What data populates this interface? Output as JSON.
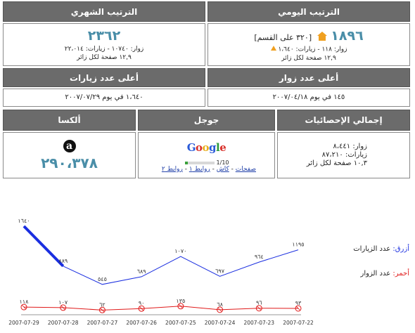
{
  "daily": {
    "header": "الترتيب اليومي",
    "rank": "١٨٩٦",
    "category": "[٣٢٠ على القسم]",
    "stats": "زوار: ١١٨ - زيارات: ١،٦٤٠",
    "pages": "١٢,٩ صفحة لكل زائر"
  },
  "monthly": {
    "header": "الترتيب الشهري",
    "rank": "٢٣٦٢",
    "stats": "زوار: ١٠٧٤٠ - زيارات: ٢٢،٠١٤",
    "pages": "١٢,٩ صفحة لكل زائر"
  },
  "top_visitors": {
    "header": "أعلى عدد زوار",
    "value": "١٤٥ في يوم ٢٠٠٧/٠٤/١٨"
  },
  "top_visits": {
    "header": "أعلى عدد زيارات",
    "value": "١،٦٤٠ في يوم ٢٠٠٧/٠٧/٢٩"
  },
  "totals": {
    "header": "إجمالي الإحصائيات",
    "visitors": "زوار: ٨،٤٤١",
    "visits": "زيارات: ٨٧،٢١٠",
    "pages": "١٠,٣ صفحة لكل زائر"
  },
  "google": {
    "header": "جوجل",
    "pagerank": "1/10",
    "pagerank_fraction": 0.1,
    "links": {
      "pages": "صفحات",
      "cache": "كاش",
      "links1": "روابط ١",
      "links2": "روابط ٢"
    }
  },
  "alexa": {
    "header": "ألكسا",
    "rank": "٢٩٠،٣٧٨"
  },
  "legend": {
    "blue_color_name": "أزرق:",
    "blue_label": "عدد الزيارات",
    "red_color_name": "أحمر:",
    "red_label": "عدد الزوار"
  },
  "chart_data": {
    "type": "line",
    "x": [
      "2007-07-29",
      "2007-07-28",
      "2007-07-27",
      "2007-07-26",
      "2007-07-25",
      "2007-07-24",
      "2007-07-23",
      "2007-07-22"
    ],
    "series": [
      {
        "color": "#1a2ee0",
        "values": [
          1640,
          889,
          545,
          689,
          1070,
          697,
          964,
          1195
        ],
        "labels": [
          "١٦٤٠",
          "٨٨٩",
          "٥٤٥",
          "٦٨٩",
          "١٠٧٠",
          "٦٩٧",
          "٩٦٤",
          "١١٩٥"
        ]
      },
      {
        "color": "#e01a1a",
        "values": [
          118,
          107,
          62,
          90,
          135,
          68,
          96,
          93
        ],
        "labels": [
          "١١٨",
          "١٠٧",
          "٦٢",
          "٩٠",
          "١٣٥",
          "٦٨",
          "٩٦",
          "٩٣"
        ]
      }
    ],
    "ylim": [
      0,
      1640
    ],
    "grid": false,
    "legend_placement": "right"
  }
}
